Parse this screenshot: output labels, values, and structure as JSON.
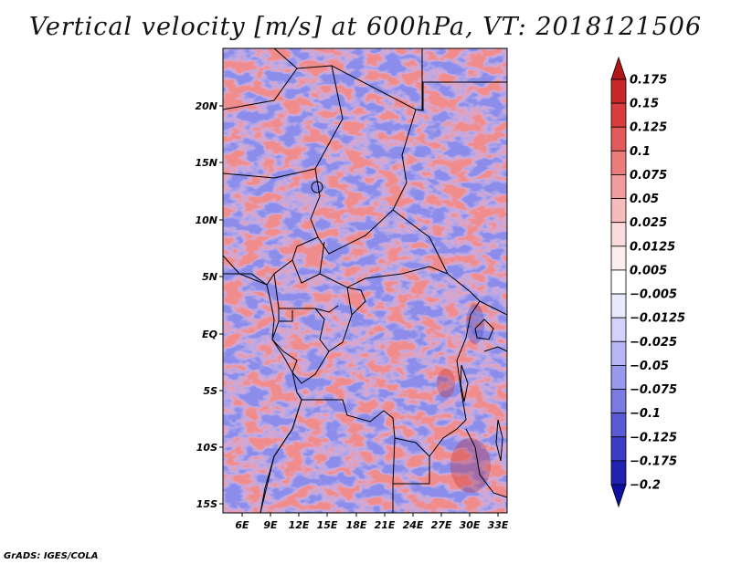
{
  "title": "Vertical velocity [m/s] at 600hPa, VT: 2018121506",
  "footer": "GrADS: IGES/COLA",
  "map": {
    "lat_labels": [
      "20N",
      "15N",
      "10N",
      "5N",
      "EQ",
      "5S",
      "10S",
      "15S"
    ],
    "lon_labels": [
      "6E",
      "9E",
      "12E",
      "15E",
      "18E",
      "21E",
      "24E",
      "27E",
      "30E",
      "33E"
    ]
  },
  "colorbar": {
    "labels": [
      "0.175",
      "0.15",
      "0.125",
      "0.1",
      "0.075",
      "0.05",
      "0.025",
      "0.0125",
      "0.005",
      "−0.005",
      "−0.0125",
      "−0.025",
      "−0.05",
      "−0.075",
      "−0.1",
      "−0.125",
      "−0.175",
      "−0.2"
    ],
    "colors": [
      "#b01818",
      "#c82828",
      "#d83c3c",
      "#e25a5a",
      "#ea7c7c",
      "#f09c9c",
      "#f6bcbc",
      "#fadada",
      "#fdeeee",
      "#ffffff",
      "#eaeaff",
      "#d2d2fa",
      "#b6b6f4",
      "#9898ec",
      "#7a7ae2",
      "#5a5ad6",
      "#3c3cc6",
      "#2222b2",
      "#1010a0"
    ]
  }
}
